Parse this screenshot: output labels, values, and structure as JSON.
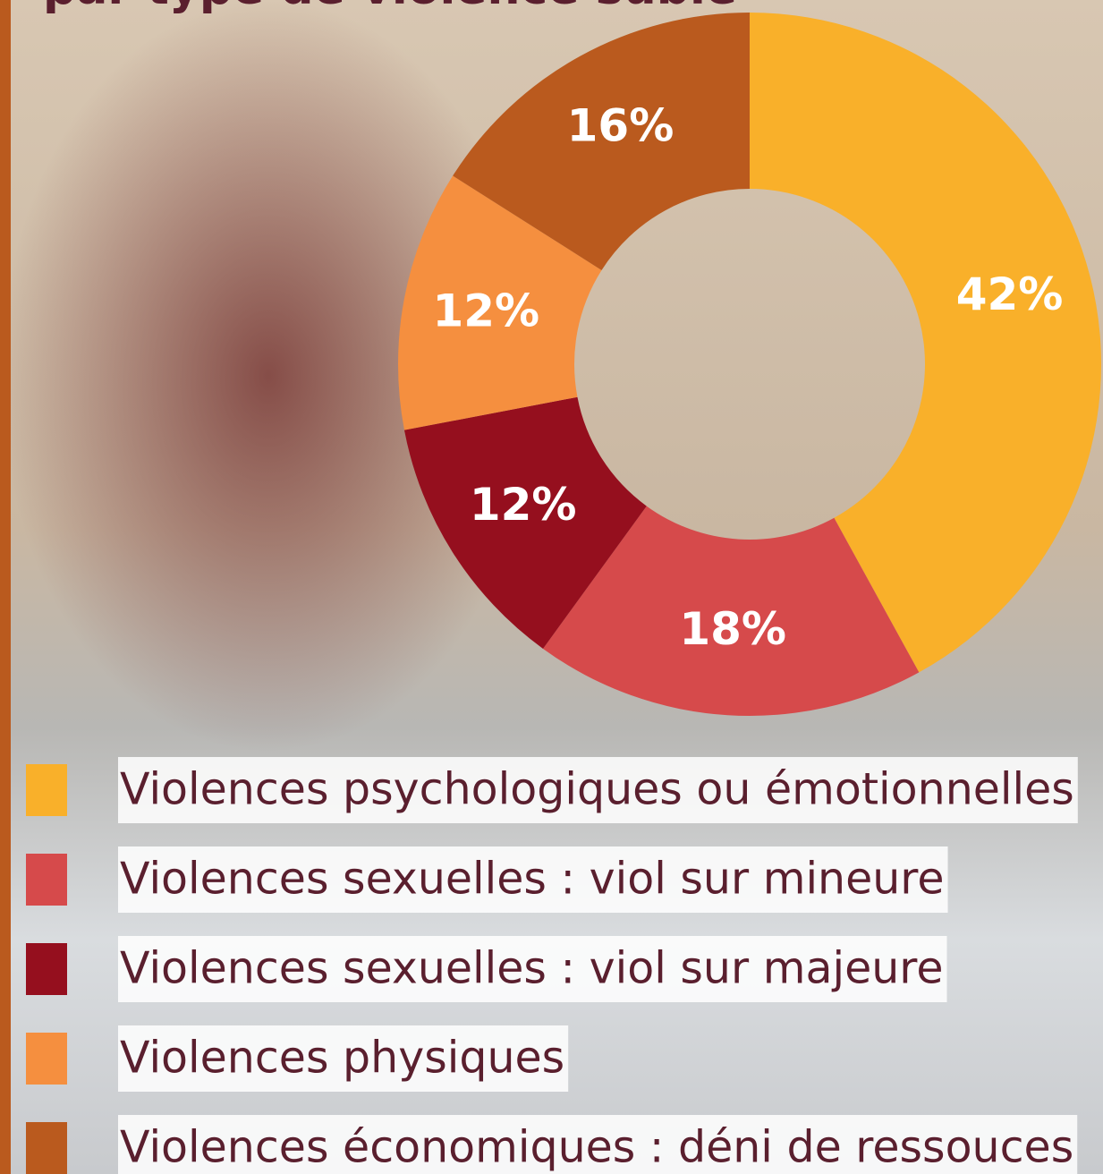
{
  "chart_data": {
    "type": "donut",
    "title": "par type de violence subie",
    "categories": [
      "Violences psychologiques ou émotionnelles",
      "Violences sexuelles : viol sur mineure",
      "Violences sexuelles : viol sur majeure",
      "Violences physiques",
      "Violences économiques : déni de ressouces"
    ],
    "values": [
      42,
      18,
      12,
      12,
      16
    ],
    "value_labels": [
      "42%",
      "18%",
      "12%",
      "12%",
      "16%"
    ],
    "colors": [
      "#f9b02a",
      "#d64a4b",
      "#950f1e",
      "#f58f3f",
      "#ba5a1e"
    ]
  }
}
